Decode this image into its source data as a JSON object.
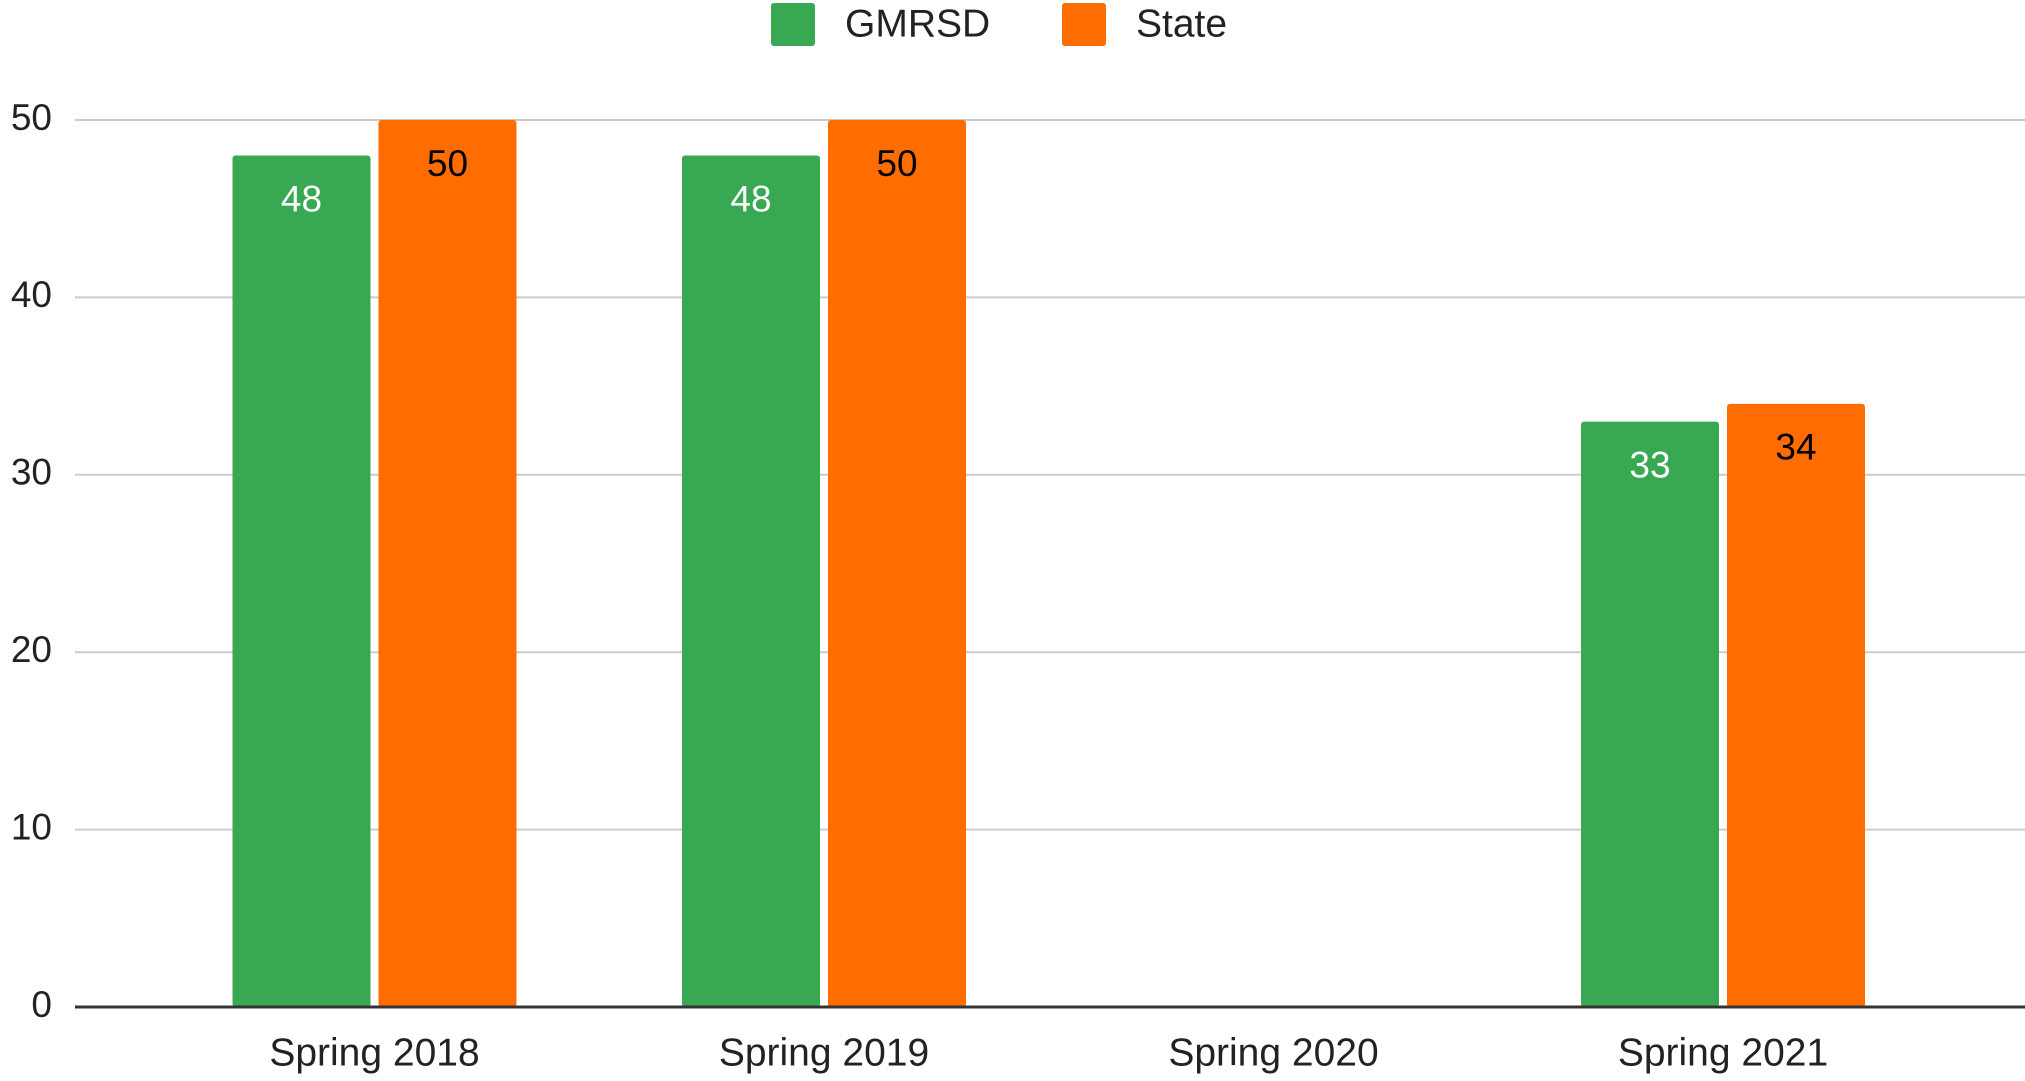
{
  "chart_data": {
    "type": "bar",
    "categories": [
      "Spring 2018",
      "Spring 2019",
      "Spring 2020",
      "Spring 2021"
    ],
    "series": [
      {
        "name": "GMRSD",
        "color": "#38a852",
        "label_color": "#ffffff",
        "values": [
          48,
          48,
          null,
          33
        ]
      },
      {
        "name": "State",
        "color": "#ff6d01",
        "label_color": "#000000",
        "values": [
          50,
          50,
          null,
          34
        ]
      }
    ],
    "ylim": [
      0,
      50
    ],
    "yticks": [
      0,
      10,
      20,
      30,
      40,
      50
    ],
    "grid": true,
    "legend": "top"
  }
}
